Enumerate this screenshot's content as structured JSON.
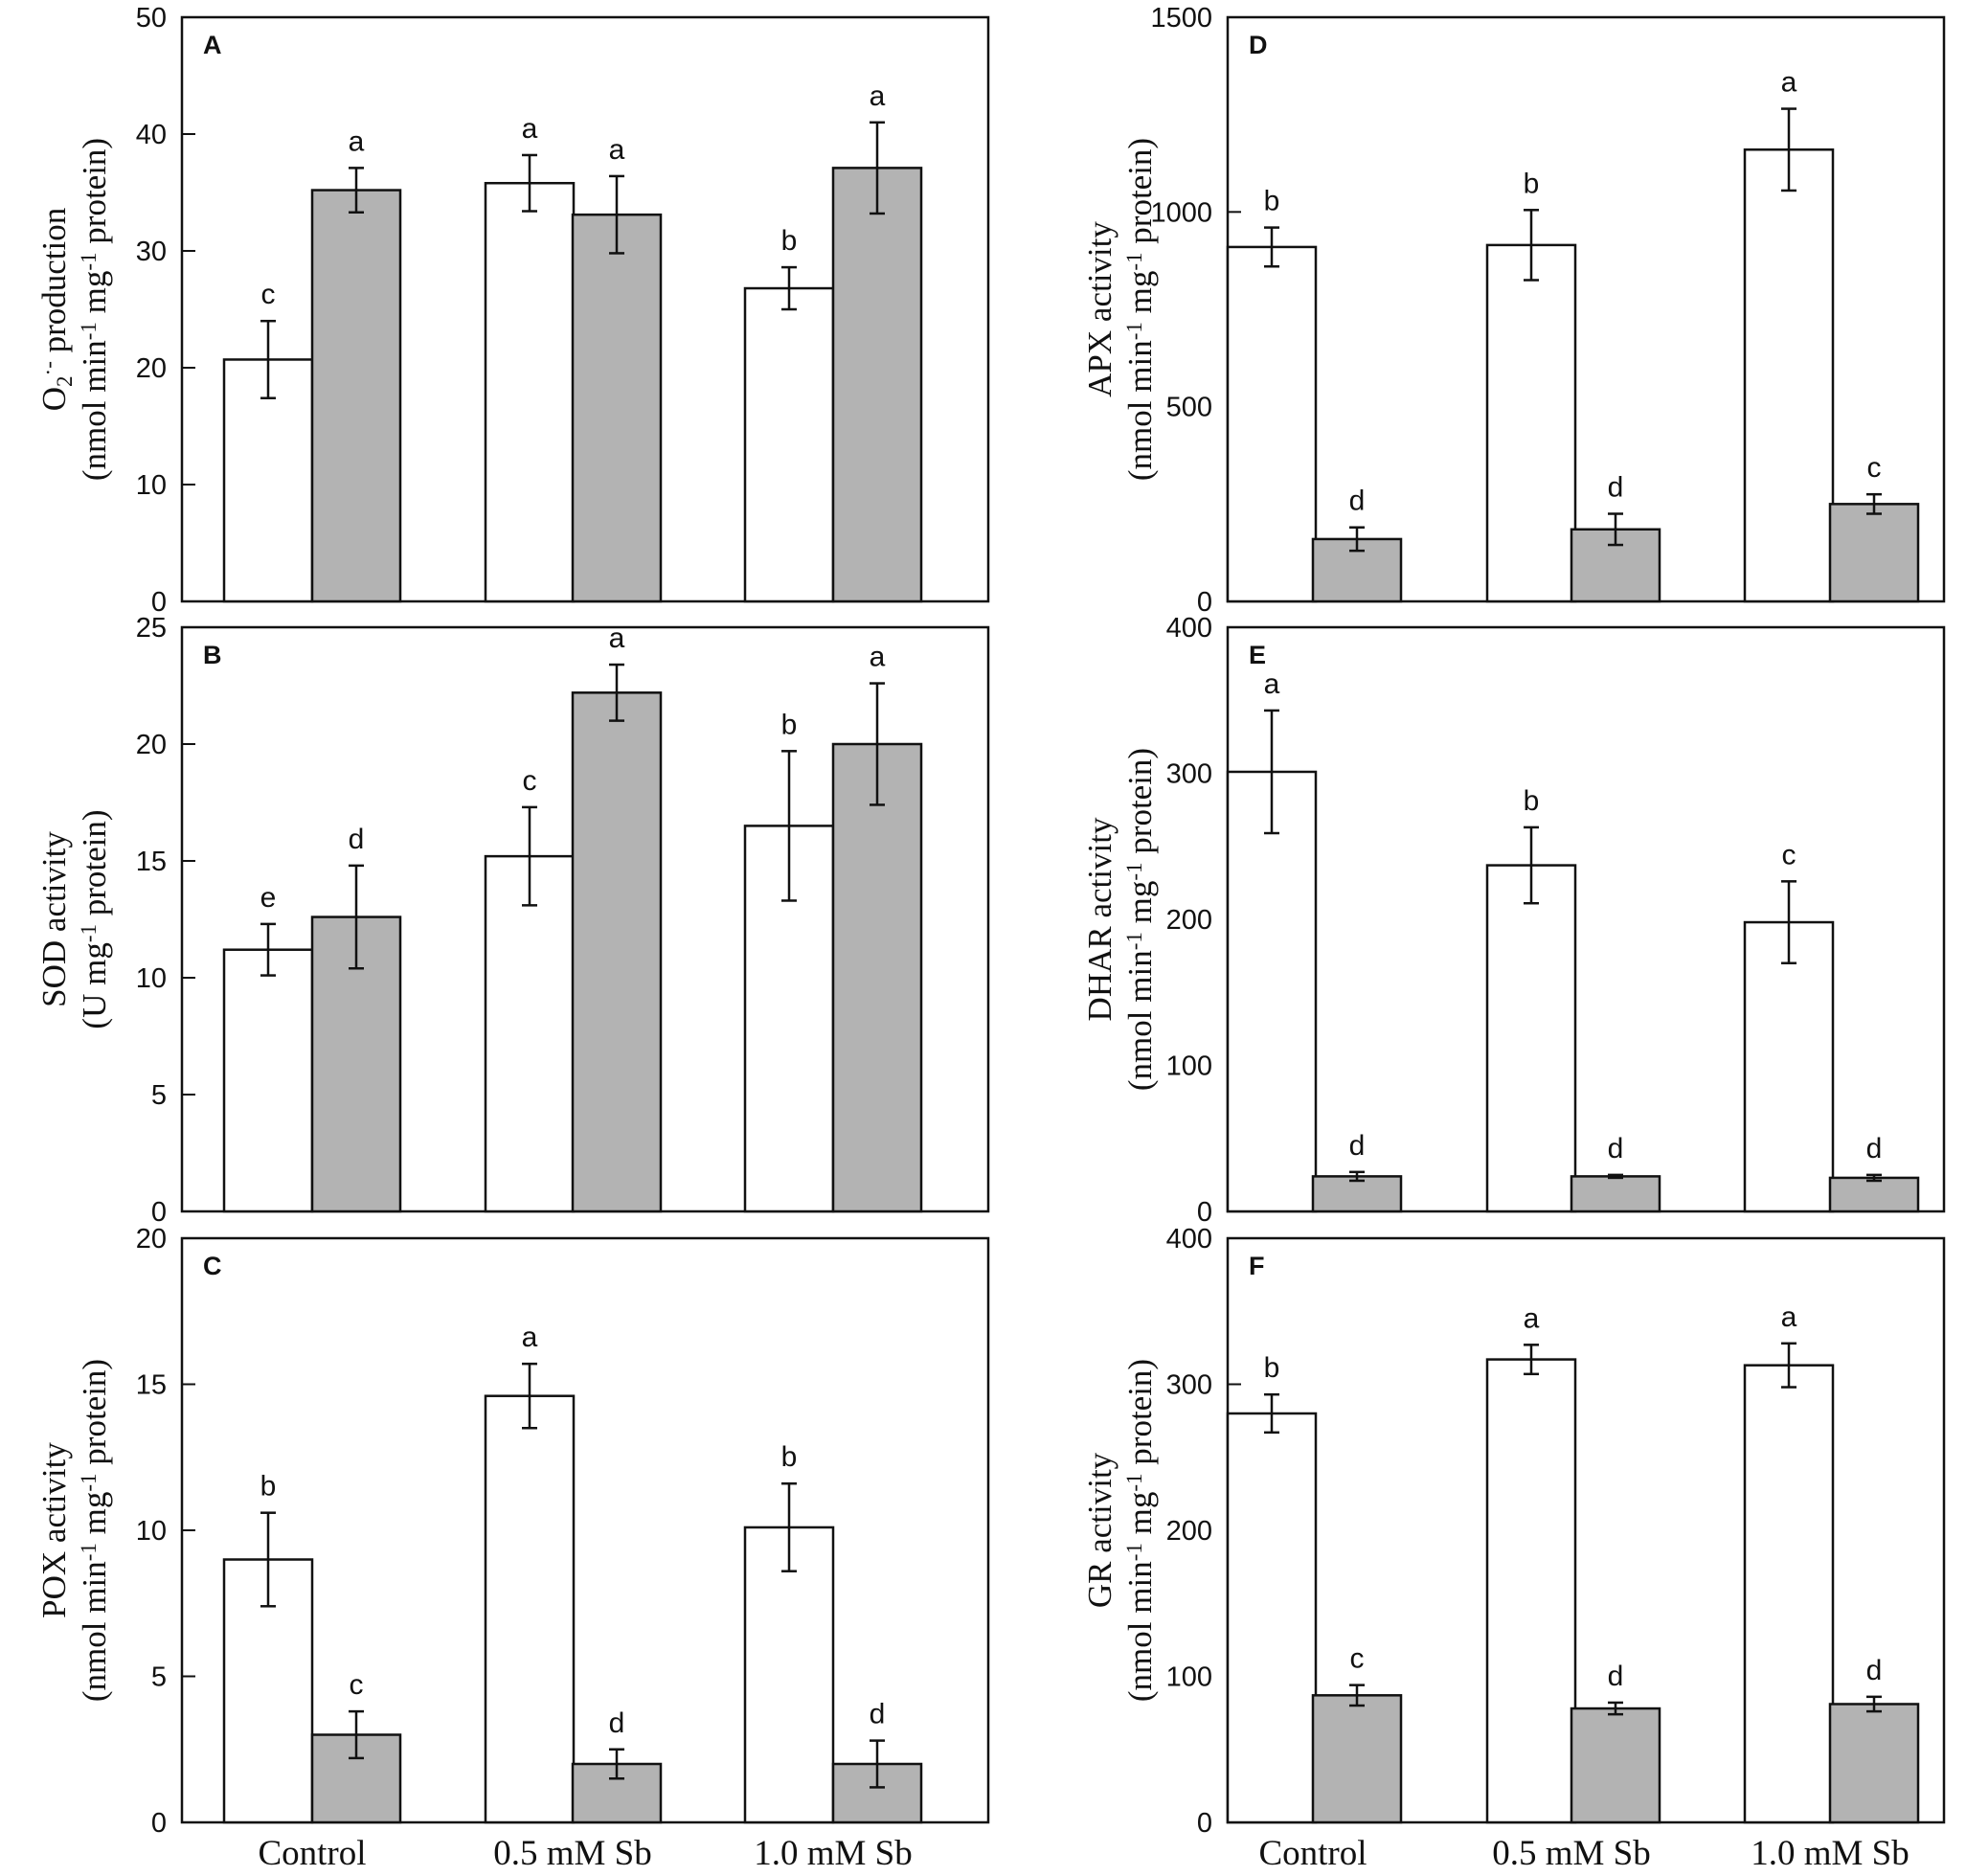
{
  "chart_data": [
    {
      "type": "bar",
      "panel": "A",
      "ylabel_lines": [
        [
          {
            "t": "O"
          },
          {
            "t": "2",
            "sub": true
          },
          {
            "t": "·-",
            "sup": true
          },
          {
            "t": " production"
          }
        ],
        [
          {
            "t": "(nmol min"
          },
          {
            "t": "-1",
            "sup": true
          },
          {
            "t": " mg"
          },
          {
            "t": "-1",
            "sup": true
          },
          {
            "t": " protein)"
          }
        ]
      ],
      "ylim": [
        0,
        50
      ],
      "yticks": [
        0,
        10,
        20,
        30,
        40,
        50
      ],
      "categories": [
        "Control",
        "0.5 mM Sb",
        "1.0 mM Sb"
      ],
      "series": [
        {
          "name": "white",
          "color": "#ffffff",
          "values": [
            20.7,
            35.8,
            26.8
          ],
          "errors": [
            3.3,
            2.4,
            1.8
          ],
          "labels": [
            "c",
            "a",
            "b"
          ]
        },
        {
          "name": "gray",
          "color": "#b3b3b3",
          "values": [
            35.2,
            33.1,
            37.1
          ],
          "errors": [
            1.9,
            3.3,
            3.9
          ],
          "labels": [
            "a",
            "a",
            "a"
          ]
        }
      ]
    },
    {
      "type": "bar",
      "panel": "B",
      "ylabel_lines": [
        [
          {
            "t": "SOD activity"
          }
        ],
        [
          {
            "t": "(U mg"
          },
          {
            "t": "-1",
            "sup": true
          },
          {
            "t": " protein)"
          }
        ]
      ],
      "ylim": [
        0,
        25
      ],
      "yticks": [
        0,
        5,
        10,
        15,
        20,
        25
      ],
      "categories": [
        "Control",
        "0.5 mM Sb",
        "1.0 mM Sb"
      ],
      "series": [
        {
          "name": "white",
          "color": "#ffffff",
          "values": [
            11.2,
            15.2,
            16.5
          ],
          "errors": [
            1.1,
            2.1,
            3.2
          ],
          "labels": [
            "e",
            "c",
            "b"
          ]
        },
        {
          "name": "gray",
          "color": "#b3b3b3",
          "values": [
            12.6,
            22.2,
            20.0
          ],
          "errors": [
            2.2,
            1.2,
            2.6
          ],
          "labels": [
            "d",
            "a",
            "a"
          ]
        }
      ]
    },
    {
      "type": "bar",
      "panel": "C",
      "ylabel_lines": [
        [
          {
            "t": "POX activity"
          }
        ],
        [
          {
            "t": "(nmol min"
          },
          {
            "t": "-1",
            "sup": true
          },
          {
            "t": " mg"
          },
          {
            "t": "-1",
            "sup": true
          },
          {
            "t": " protein)"
          }
        ]
      ],
      "ylim": [
        0,
        20
      ],
      "yticks": [
        0,
        5,
        10,
        15,
        20
      ],
      "categories": [
        "Control",
        "0.5 mM Sb",
        "1.0 mM Sb"
      ],
      "series": [
        {
          "name": "white",
          "color": "#ffffff",
          "values": [
            9.0,
            14.6,
            10.1
          ],
          "errors": [
            1.6,
            1.1,
            1.5
          ],
          "labels": [
            "b",
            "a",
            "b"
          ]
        },
        {
          "name": "gray",
          "color": "#b3b3b3",
          "values": [
            3.0,
            2.0,
            2.0
          ],
          "errors": [
            0.8,
            0.5,
            0.8
          ],
          "labels": [
            "c",
            "d",
            "d"
          ]
        }
      ]
    },
    {
      "type": "bar",
      "panel": "D",
      "ylabel_lines": [
        [
          {
            "t": "APX activity"
          }
        ],
        [
          {
            "t": "(nmol min"
          },
          {
            "t": "-1",
            "sup": true
          },
          {
            "t": " mg"
          },
          {
            "t": "-1",
            "sup": true
          },
          {
            "t": " protein)"
          }
        ]
      ],
      "ylim": [
        0,
        1500
      ],
      "yticks": [
        0,
        500,
        1000,
        1500
      ],
      "categories": [
        "Control",
        "0.5 mM Sb",
        "1.0 mM Sb"
      ],
      "series": [
        {
          "name": "white",
          "color": "#ffffff",
          "values": [
            910,
            915,
            1160
          ],
          "errors": [
            50,
            90,
            105
          ],
          "labels": [
            "b",
            "b",
            "a"
          ]
        },
        {
          "name": "gray",
          "color": "#b3b3b3",
          "values": [
            160,
            185,
            250
          ],
          "errors": [
            30,
            40,
            25
          ],
          "labels": [
            "d",
            "d",
            "c"
          ]
        }
      ]
    },
    {
      "type": "bar",
      "panel": "E",
      "ylabel_lines": [
        [
          {
            "t": "DHAR activity"
          }
        ],
        [
          {
            "t": "(nmol min"
          },
          {
            "t": "-1",
            "sup": true
          },
          {
            "t": " mg"
          },
          {
            "t": "-1",
            "sup": true
          },
          {
            "t": " protein)"
          }
        ]
      ],
      "ylim": [
        0,
        400
      ],
      "yticks": [
        0,
        100,
        200,
        300,
        400
      ],
      "categories": [
        "Control",
        "0.5 mM Sb",
        "1.0 mM Sb"
      ],
      "series": [
        {
          "name": "white",
          "color": "#ffffff",
          "values": [
            301,
            237,
            198
          ],
          "errors": [
            42,
            26,
            28
          ],
          "labels": [
            "a",
            "b",
            "c"
          ]
        },
        {
          "name": "gray",
          "color": "#b3b3b3",
          "values": [
            24,
            24,
            23
          ],
          "errors": [
            3,
            1,
            2
          ],
          "labels": [
            "d",
            "d",
            "d"
          ]
        }
      ]
    },
    {
      "type": "bar",
      "panel": "F",
      "ylabel_lines": [
        [
          {
            "t": "GR activity"
          }
        ],
        [
          {
            "t": "(nmol min"
          },
          {
            "t": "-1",
            "sup": true
          },
          {
            "t": " mg"
          },
          {
            "t": "-1",
            "sup": true
          },
          {
            "t": " protein)"
          }
        ]
      ],
      "ylim": [
        0,
        400
      ],
      "yticks": [
        0,
        100,
        200,
        300,
        400
      ],
      "categories": [
        "Control",
        "0.5 mM Sb",
        "1.0 mM Sb"
      ],
      "series": [
        {
          "name": "white",
          "color": "#ffffff",
          "values": [
            280,
            317,
            313
          ],
          "errors": [
            13,
            10,
            15
          ],
          "labels": [
            "b",
            "a",
            "a"
          ]
        },
        {
          "name": "gray",
          "color": "#b3b3b3",
          "values": [
            87,
            78,
            81
          ],
          "errors": [
            7,
            4,
            5
          ],
          "labels": [
            "c",
            "d",
            "d"
          ]
        }
      ]
    }
  ]
}
